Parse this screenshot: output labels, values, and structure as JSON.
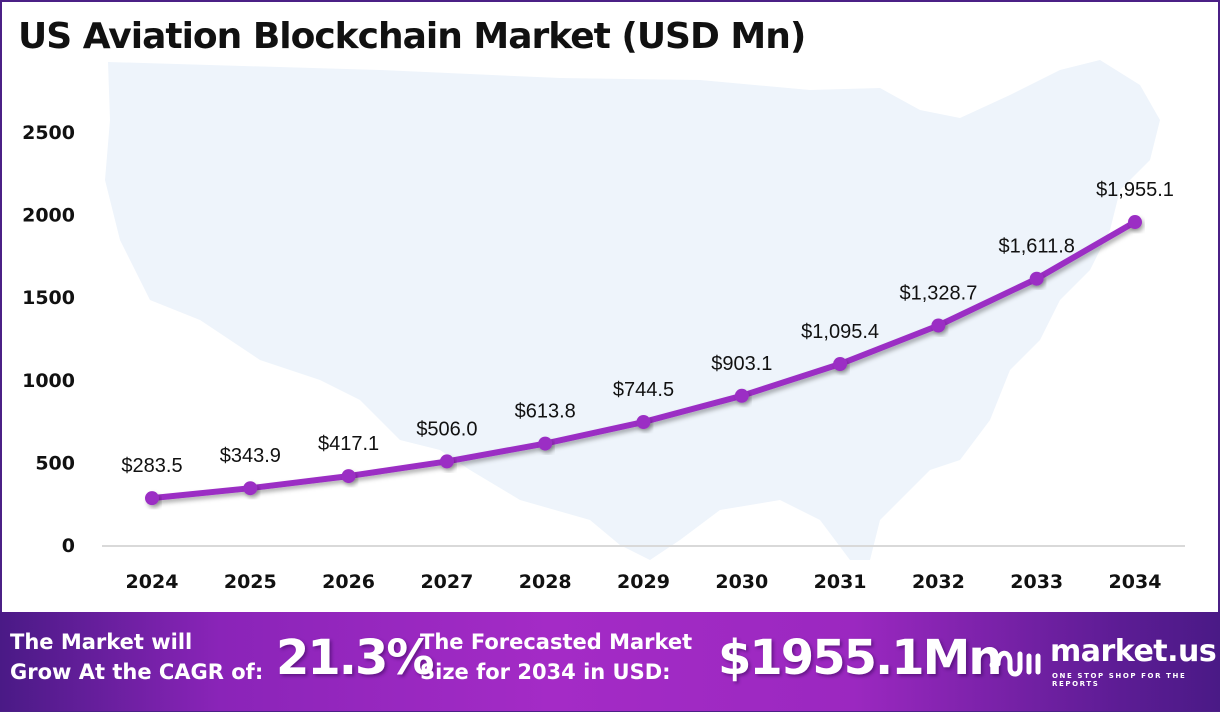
{
  "chart_data": {
    "type": "line",
    "title": "US Aviation Blockchain Market (USD Mn)",
    "xlabel": "",
    "ylabel": "",
    "categories": [
      "2024",
      "2025",
      "2026",
      "2027",
      "2028",
      "2029",
      "2030",
      "2031",
      "2032",
      "2033",
      "2034"
    ],
    "series": [
      {
        "name": "US Aviation Blockchain Market",
        "values": [
          283.5,
          343.9,
          417.1,
          506.0,
          613.8,
          744.5,
          903.1,
          1095.4,
          1328.7,
          1611.8,
          1955.1
        ],
        "labels": [
          "$283.5",
          "$343.9",
          "$417.1",
          "$506.0",
          "$613.8",
          "$744.5",
          "$903.1",
          "$1,095.4",
          "$1,328.7",
          "$1,611.8",
          "$1,955.1"
        ],
        "color": "#9b2fc4"
      }
    ],
    "yticks": [
      0,
      500,
      1000,
      1500,
      2000,
      2500
    ],
    "ylim": [
      0,
      2500
    ],
    "grid": false,
    "legend": "none"
  },
  "banner": {
    "cagr_line1": "The Market will",
    "cagr_line2": "Grow At the CAGR of:",
    "cagr_value": "21.3%",
    "forecast_line1": "The Forecasted Market",
    "forecast_line2": "Size for 2034 in USD:",
    "forecast_value": "$1955.1Mn"
  },
  "brand": {
    "name": "market.us",
    "tagline": "ONE STOP SHOP FOR THE REPORTS",
    "logo_icon": "market-us-logo-icon"
  },
  "colors": {
    "line": "#9b2fc4",
    "frame": "#4b2086",
    "map": "#eef4fb",
    "axis": "#d9d9d9"
  }
}
